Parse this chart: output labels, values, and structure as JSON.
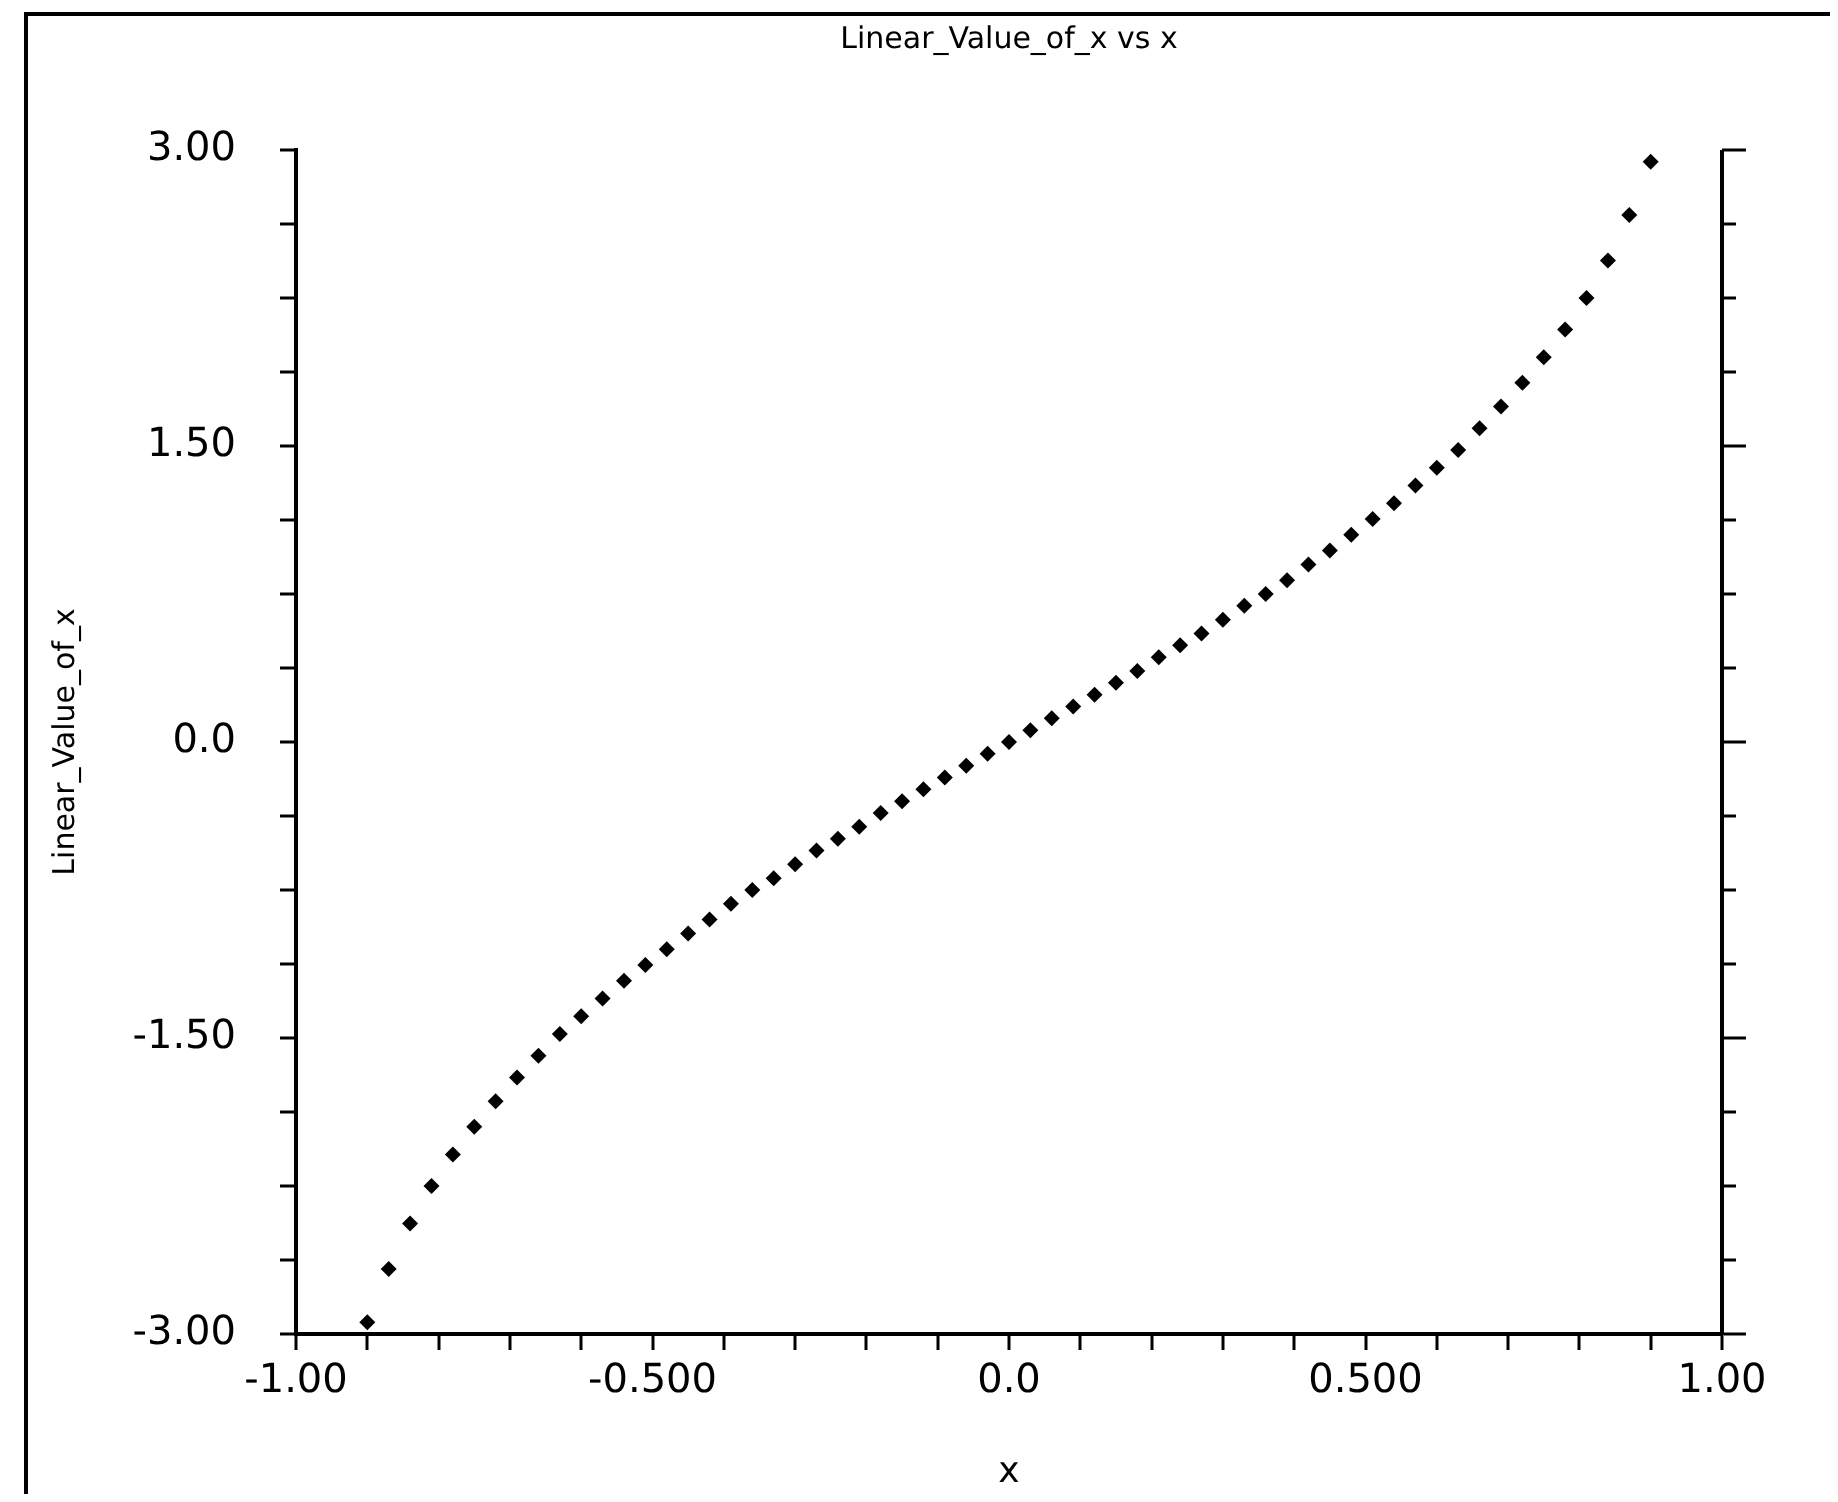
{
  "chart_data": {
    "type": "scatter",
    "title": "Linear_Value_of_x vs x",
    "xlabel": "x",
    "ylabel": "Linear_Value_of_x",
    "x": [
      -0.9,
      -0.87,
      -0.84,
      -0.81,
      -0.78,
      -0.75,
      -0.72,
      -0.69,
      -0.66,
      -0.63,
      -0.6,
      -0.57,
      -0.54,
      -0.51,
      -0.48,
      -0.45,
      -0.42,
      -0.39,
      -0.36,
      -0.33,
      -0.3,
      -0.27,
      -0.24,
      -0.21,
      -0.18,
      -0.15,
      -0.12,
      -0.09,
      -0.06,
      -0.03,
      0,
      0.03,
      0.06,
      0.09,
      0.12,
      0.15,
      0.18,
      0.21,
      0.24,
      0.27,
      0.3,
      0.33,
      0.36,
      0.39,
      0.42,
      0.45,
      0.48,
      0.51,
      0.54,
      0.57,
      0.6,
      0.63,
      0.66,
      0.69,
      0.72,
      0.75,
      0.78,
      0.81,
      0.84,
      0.87,
      0.9
    ],
    "series": [
      {
        "color": "#000000",
        "values": [
          -2.94,
          -2.67,
          -2.44,
          -2.25,
          -2.09,
          -1.95,
          -1.82,
          -1.7,
          -1.59,
          -1.48,
          -1.39,
          -1.3,
          -1.21,
          -1.13,
          -1.05,
          -0.97,
          -0.9,
          -0.82,
          -0.75,
          -0.69,
          -0.62,
          -0.55,
          -0.49,
          -0.43,
          -0.36,
          -0.3,
          -0.24,
          -0.18,
          -0.12,
          -0.06,
          0,
          0.06,
          0.12,
          0.18,
          0.24,
          0.3,
          0.36,
          0.43,
          0.49,
          0.55,
          0.62,
          0.69,
          0.75,
          0.82,
          0.9,
          0.97,
          1.05,
          1.13,
          1.21,
          1.3,
          1.39,
          1.48,
          1.59,
          1.7,
          1.82,
          1.95,
          2.09,
          2.25,
          2.44,
          2.67,
          2.94
        ]
      }
    ],
    "xlim": [
      -1,
      1
    ],
    "ylim": [
      -3,
      3
    ],
    "xticks": [
      {
        "value": -1,
        "label": "-1.00"
      },
      {
        "value": -0.9,
        "label": null
      },
      {
        "value": -0.8,
        "label": null
      },
      {
        "value": -0.7,
        "label": null
      },
      {
        "value": -0.6,
        "label": null
      },
      {
        "value": -0.5,
        "label": "-0.500"
      },
      {
        "value": -0.4,
        "label": null
      },
      {
        "value": -0.3,
        "label": null
      },
      {
        "value": -0.2,
        "label": null
      },
      {
        "value": -0.1,
        "label": null
      },
      {
        "value": 0,
        "label": "0.0"
      },
      {
        "value": 0.1,
        "label": null
      },
      {
        "value": 0.2,
        "label": null
      },
      {
        "value": 0.3,
        "label": null
      },
      {
        "value": 0.4,
        "label": null
      },
      {
        "value": 0.5,
        "label": "0.500"
      },
      {
        "value": 0.6,
        "label": null
      },
      {
        "value": 0.7,
        "label": null
      },
      {
        "value": 0.8,
        "label": null
      },
      {
        "value": 0.9,
        "label": null
      },
      {
        "value": 1,
        "label": "1.00"
      }
    ],
    "yticks": [
      {
        "value": -3,
        "label": "-3.00"
      },
      {
        "value": -2.625,
        "label": null
      },
      {
        "value": -2.25,
        "label": null
      },
      {
        "value": -1.875,
        "label": null
      },
      {
        "value": -1.5,
        "label": "-1.50"
      },
      {
        "value": -1.125,
        "label": null
      },
      {
        "value": -0.75,
        "label": null
      },
      {
        "value": -0.375,
        "label": null
      },
      {
        "value": 0,
        "label": "0.0"
      },
      {
        "value": 0.375,
        "label": null
      },
      {
        "value": 0.75,
        "label": null
      },
      {
        "value": 1.125,
        "label": null
      },
      {
        "value": 1.5,
        "label": "1.50"
      },
      {
        "value": 1.875,
        "label": null
      },
      {
        "value": 2.25,
        "label": null
      },
      {
        "value": 2.625,
        "label": null
      },
      {
        "value": 3,
        "label": "3.00"
      }
    ],
    "grid": false,
    "legend": false,
    "marker": "diamond"
  }
}
